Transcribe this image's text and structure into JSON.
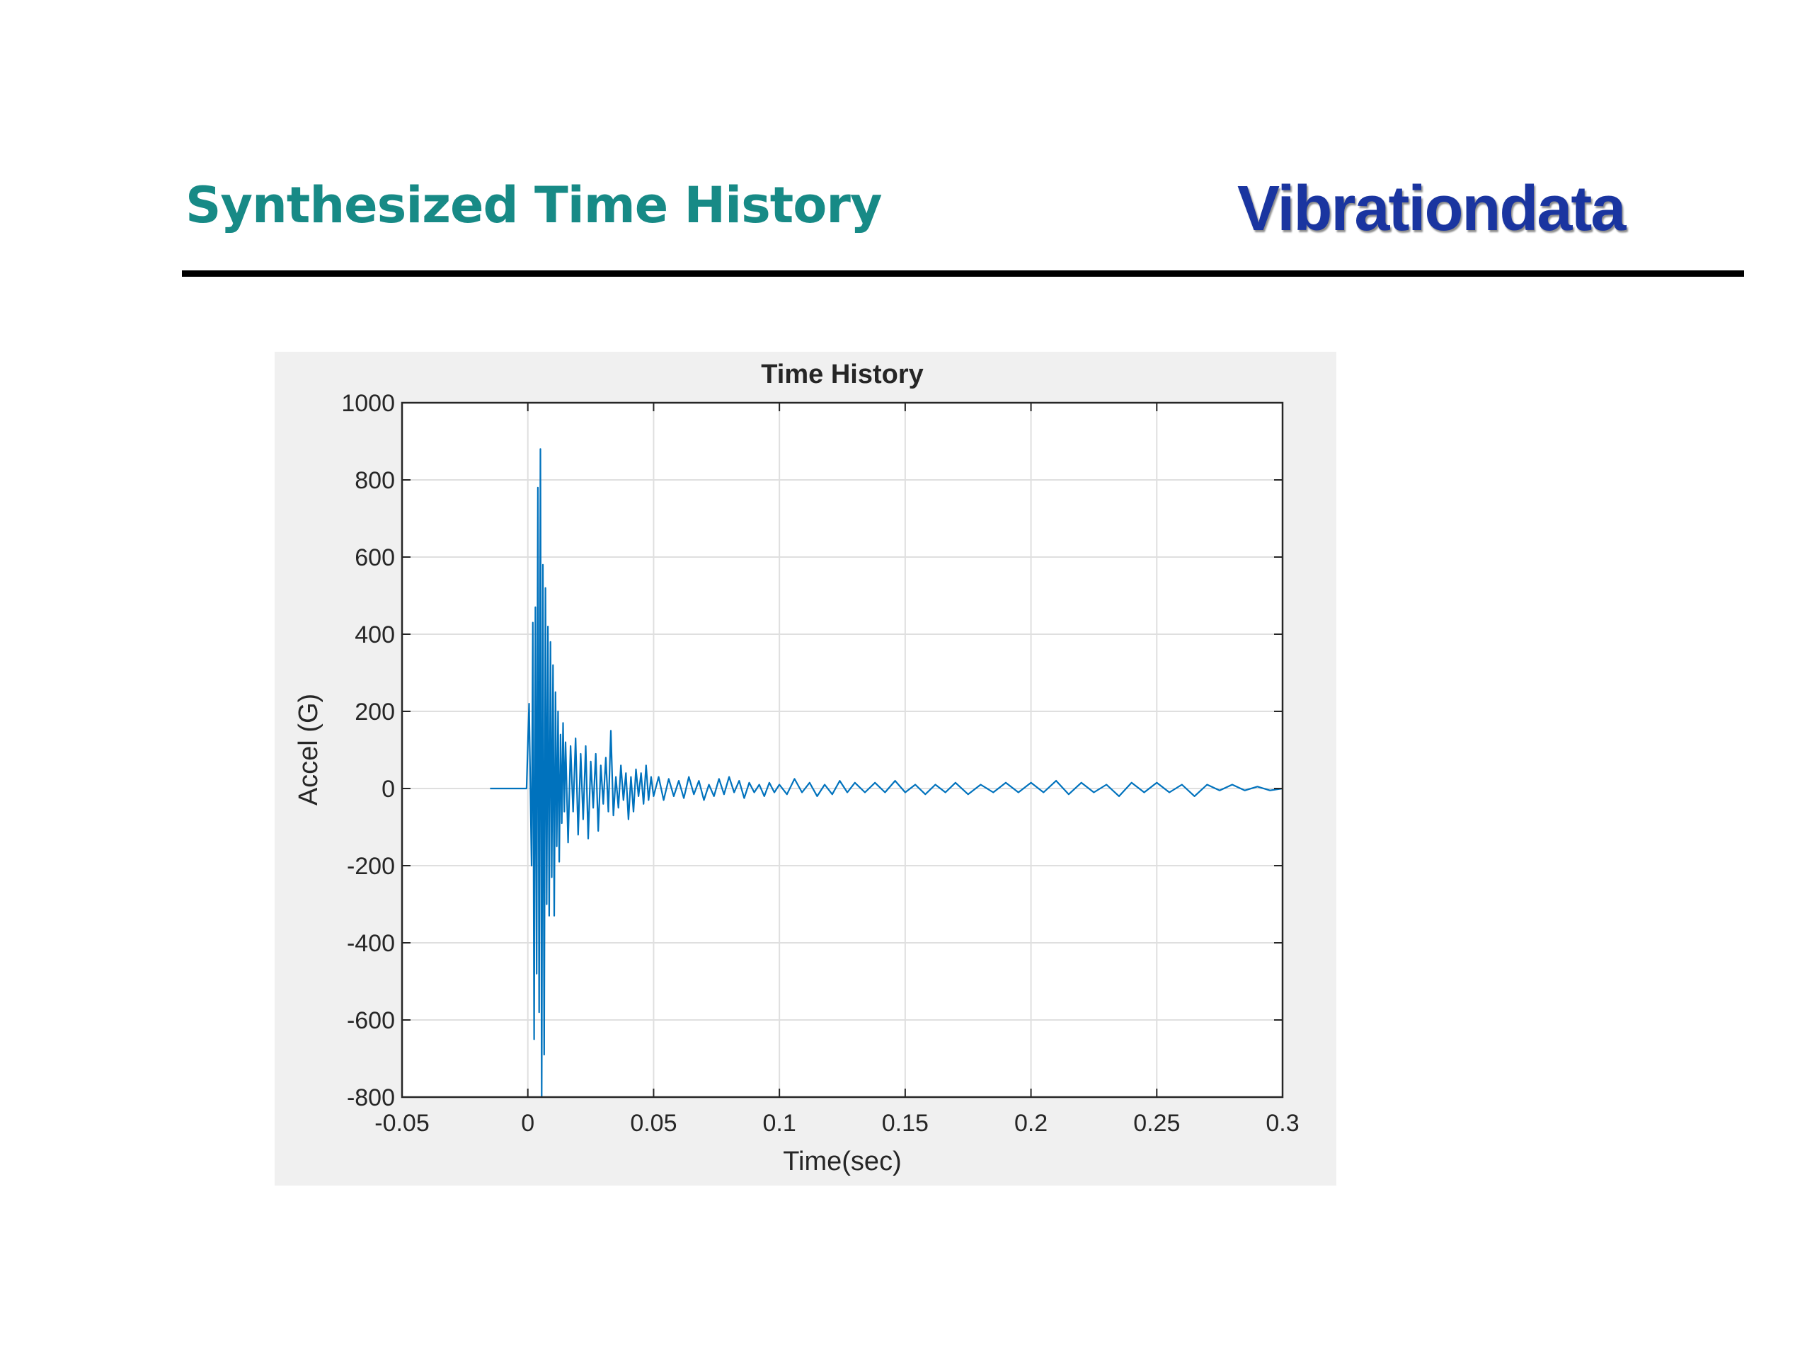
{
  "header": {
    "title": "Synthesized Time History",
    "logo_text": "Vibrationdata"
  },
  "colors": {
    "title": "#178a86",
    "logo": "#1a35a0",
    "rule": "#000000",
    "figure_background": "#f0f0f0",
    "series": "#0072bd"
  },
  "chart_data": {
    "type": "line",
    "title": "Time History",
    "xlabel": "Time(sec)",
    "ylabel": "Accel (G)",
    "xlim": [
      -0.05,
      0.3
    ],
    "ylim": [
      -800,
      1000
    ],
    "xticks": [
      -0.05,
      0,
      0.05,
      0.1,
      0.15,
      0.2,
      0.25,
      0.3
    ],
    "xtick_labels": [
      "-0.05",
      "0",
      "0.05",
      "0.1",
      "0.15",
      "0.2",
      "0.25",
      "0.3"
    ],
    "yticks": [
      -800,
      -600,
      -400,
      -200,
      0,
      200,
      400,
      600,
      800,
      1000
    ],
    "ytick_labels": [
      "-800",
      "-600",
      "-400",
      "-200",
      "0",
      "200",
      "400",
      "600",
      "800",
      "1000"
    ],
    "grid": true,
    "legend": "none",
    "series": [
      {
        "x": [
          -0.015,
          -0.0005,
          0.0005,
          0.0015,
          0.002,
          0.0025,
          0.003,
          0.0035,
          0.004,
          0.0045,
          0.005,
          0.0055,
          0.006,
          0.0065,
          0.007,
          0.0075,
          0.008,
          0.0085,
          0.009,
          0.0095,
          0.01,
          0.0105,
          0.011,
          0.0115,
          0.012,
          0.0125,
          0.013,
          0.0135,
          0.014,
          0.0145,
          0.015,
          0.016,
          0.017,
          0.018,
          0.019,
          0.02,
          0.021,
          0.022,
          0.023,
          0.024,
          0.025,
          0.026,
          0.027,
          0.028,
          0.029,
          0.03,
          0.031,
          0.032,
          0.033,
          0.034,
          0.035,
          0.036,
          0.037,
          0.038,
          0.039,
          0.04,
          0.041,
          0.042,
          0.043,
          0.044,
          0.045,
          0.046,
          0.047,
          0.048,
          0.049,
          0.05,
          0.052,
          0.054,
          0.056,
          0.058,
          0.06,
          0.062,
          0.064,
          0.066,
          0.068,
          0.07,
          0.072,
          0.074,
          0.076,
          0.078,
          0.08,
          0.082,
          0.084,
          0.086,
          0.088,
          0.09,
          0.092,
          0.094,
          0.096,
          0.098,
          0.1,
          0.103,
          0.106,
          0.109,
          0.112,
          0.115,
          0.118,
          0.121,
          0.124,
          0.127,
          0.13,
          0.134,
          0.138,
          0.142,
          0.146,
          0.15,
          0.154,
          0.158,
          0.162,
          0.166,
          0.17,
          0.175,
          0.18,
          0.185,
          0.19,
          0.195,
          0.2,
          0.205,
          0.21,
          0.215,
          0.22,
          0.225,
          0.23,
          0.235,
          0.24,
          0.245,
          0.25,
          0.255,
          0.26,
          0.265,
          0.27,
          0.275,
          0.28,
          0.285,
          0.29,
          0.295,
          0.3
        ],
        "y": [
          0,
          0,
          220,
          -200,
          430,
          -650,
          470,
          -480,
          780,
          -580,
          880,
          -800,
          580,
          -690,
          520,
          -300,
          420,
          -330,
          380,
          -230,
          320,
          -330,
          250,
          -150,
          200,
          -190,
          140,
          -90,
          170,
          -60,
          120,
          -140,
          110,
          -60,
          130,
          -120,
          90,
          -80,
          110,
          -130,
          70,
          -50,
          90,
          -110,
          60,
          -40,
          80,
          -60,
          150,
          -70,
          30,
          -50,
          60,
          -30,
          40,
          -80,
          30,
          -60,
          50,
          -20,
          40,
          -40,
          60,
          -30,
          30,
          -20,
          30,
          -30,
          25,
          -20,
          20,
          -25,
          30,
          -15,
          20,
          -30,
          10,
          -20,
          25,
          -15,
          30,
          -10,
          20,
          -25,
          15,
          -10,
          10,
          -20,
          15,
          -10,
          10,
          -15,
          25,
          -10,
          15,
          -20,
          10,
          -15,
          20,
          -10,
          15,
          -10,
          15,
          -10,
          20,
          -10,
          10,
          -15,
          10,
          -10,
          15,
          -15,
          10,
          -10,
          15,
          -10,
          15,
          -10,
          20,
          -15,
          15,
          -10,
          10,
          -20,
          15,
          -10,
          15,
          -10,
          10,
          -20,
          10,
          -5,
          10,
          -5,
          5,
          -5,
          0
        ]
      }
    ]
  }
}
